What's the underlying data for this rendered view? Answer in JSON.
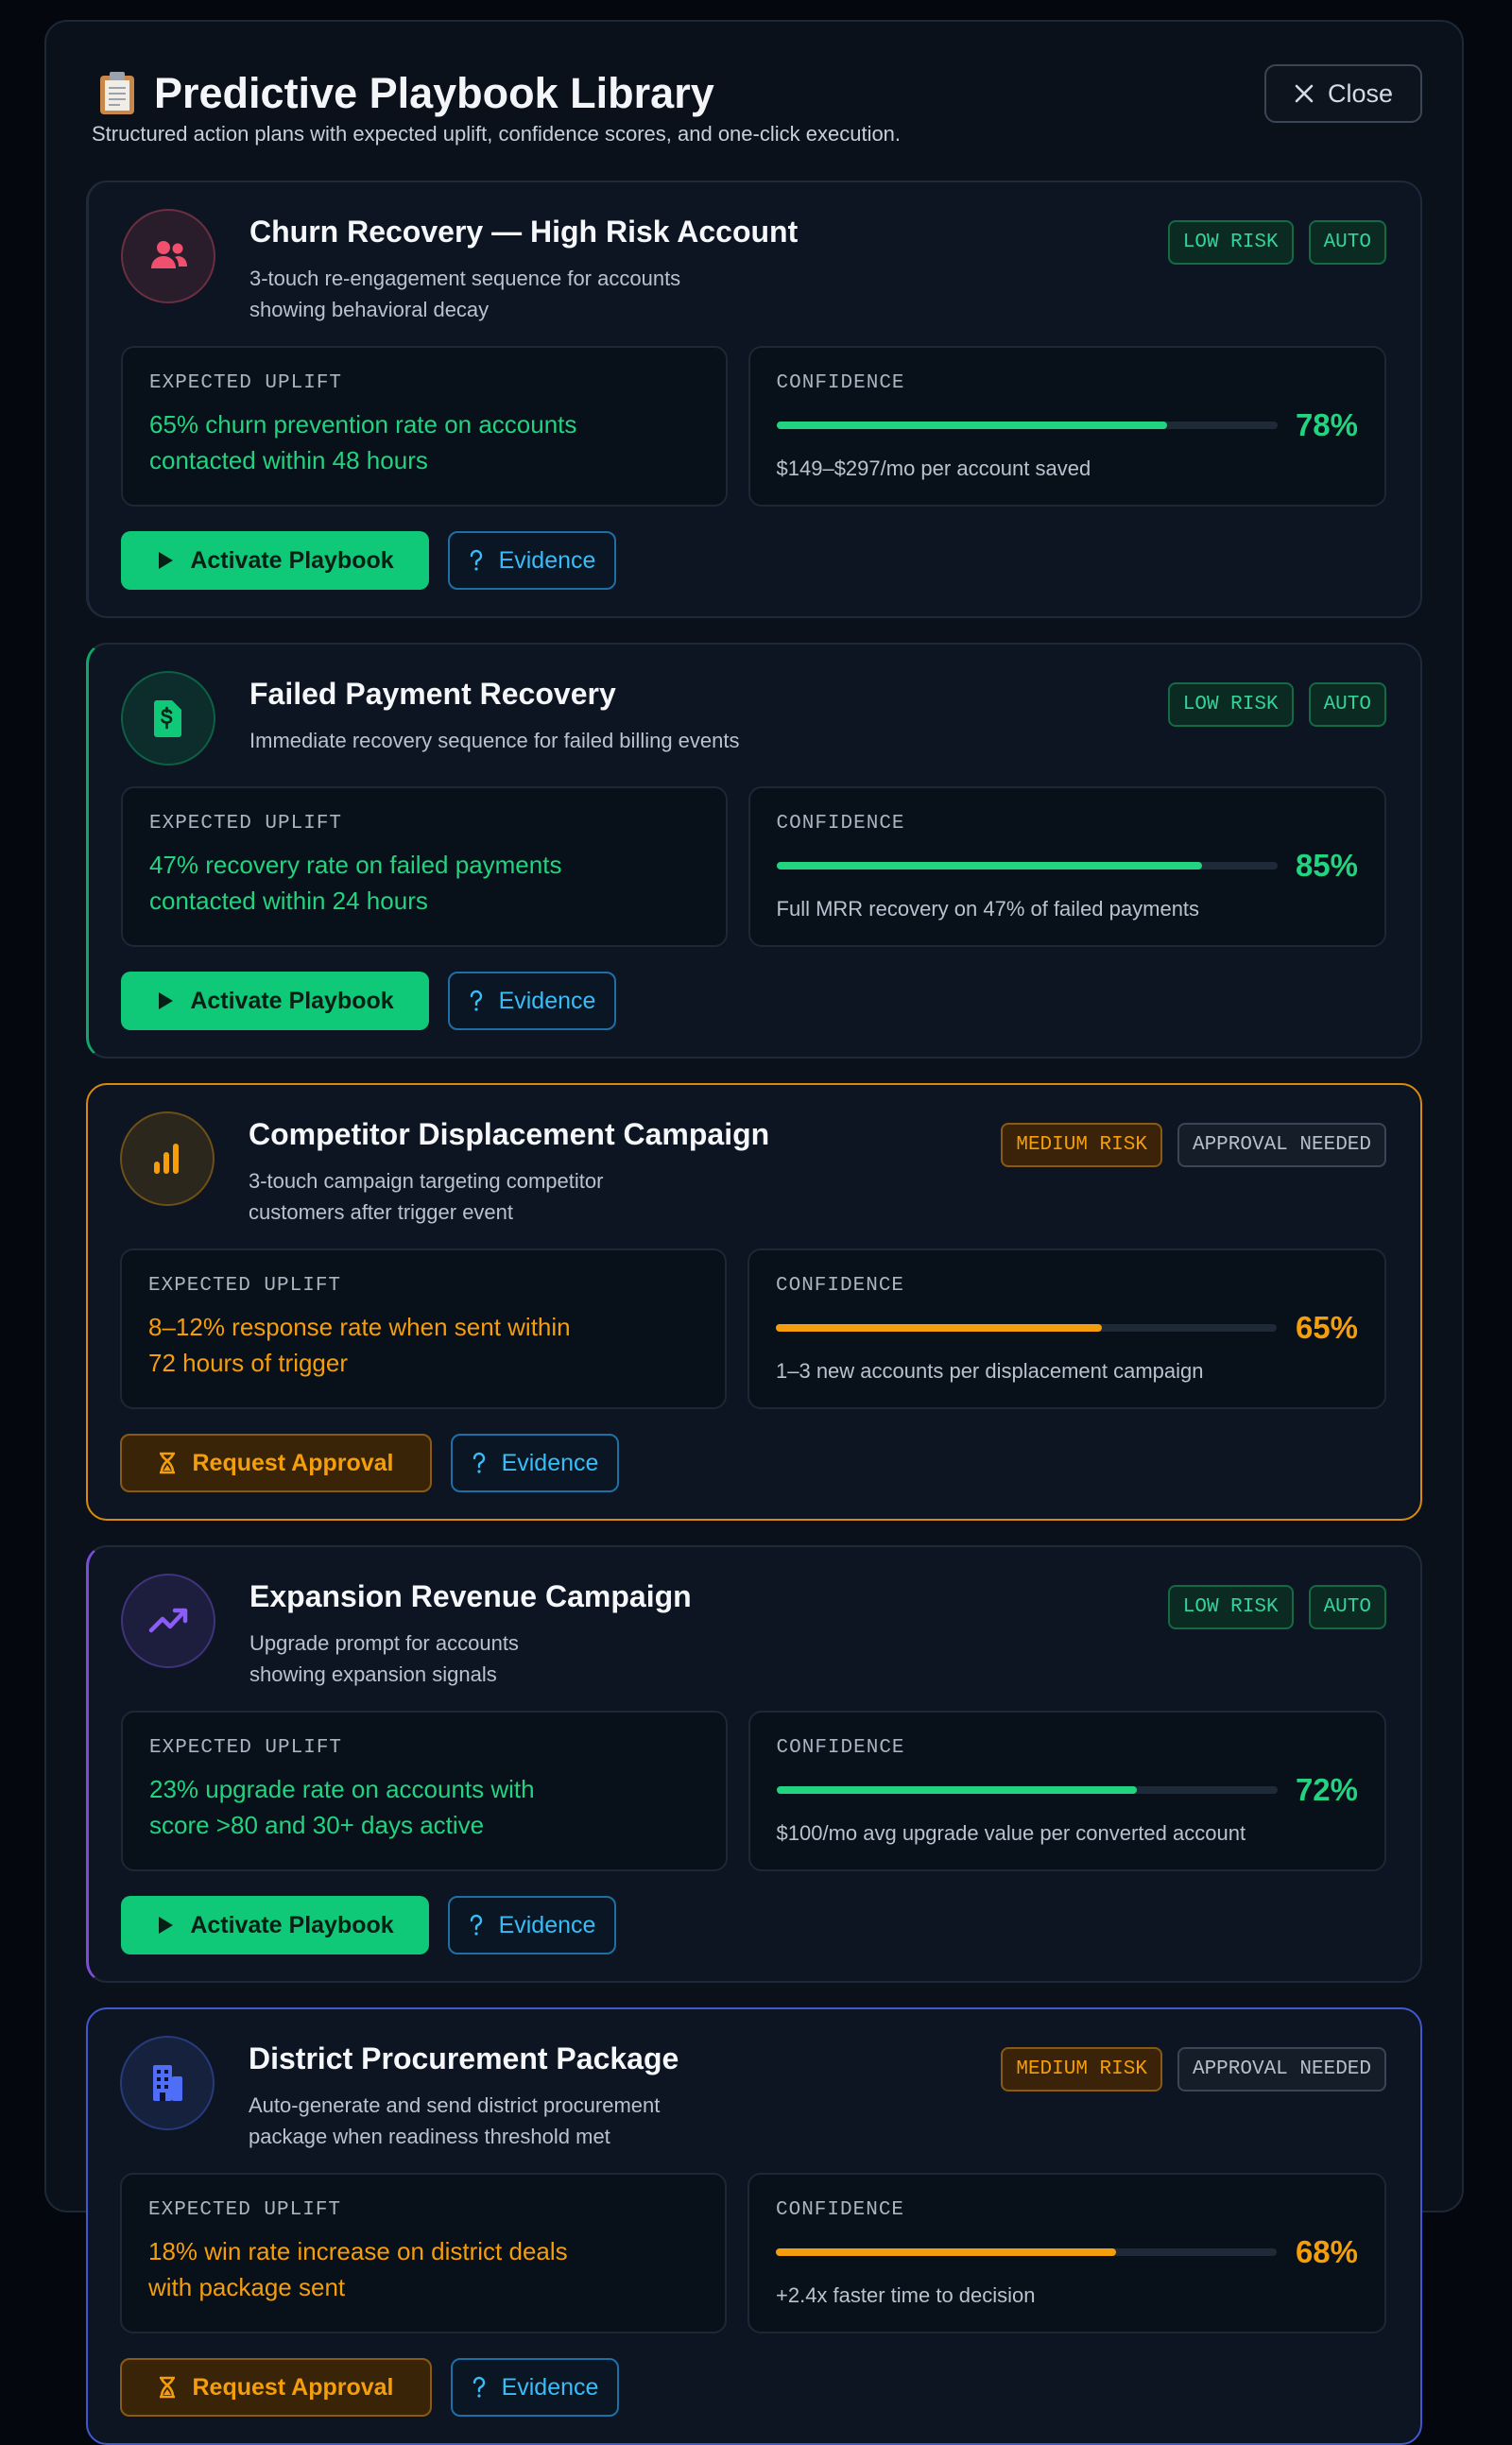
{
  "header": {
    "title": "Predictive Playbook Library",
    "subtitle": "Structured action plans with expected uplift, confidence scores, and one-click execution.",
    "close": "Close"
  },
  "playbooks": [
    {
      "title": "Churn Recovery — High Risk Account",
      "description": "3-touch re-engagement sequence for accounts\nshowing behavioral decay",
      "risk": "LOW RISK",
      "mode": "AUTO",
      "uplift_label": "EXPECTED UPLIFT",
      "uplift": "65% churn prevention rate on accounts\ncontacted within 48 hours",
      "confidence_label": "CONFIDENCE",
      "confidence": {
        "value": 78,
        "label": "78%"
      },
      "note": "$149–$297/mo per account saved",
      "action": "Activate Playbook",
      "evidence": "Evidence",
      "level": "low",
      "icon": "people",
      "icon_color": "#f0506e",
      "accent": "#1e2a3a"
    },
    {
      "title": "Failed Payment Recovery",
      "description": "Immediate recovery sequence for failed billing events",
      "risk": "LOW RISK",
      "mode": "AUTO",
      "uplift_label": "EXPECTED UPLIFT",
      "uplift": "47% recovery rate on failed payments\ncontacted within 24 hours",
      "confidence_label": "CONFIDENCE",
      "confidence": {
        "value": 85,
        "label": "85%"
      },
      "note": "Full MRR recovery on 47% of failed payments",
      "action": "Activate Playbook",
      "evidence": "Evidence",
      "level": "low",
      "icon": "invoice",
      "icon_color": "#10c978",
      "accent": "#10a866"
    },
    {
      "title": "Competitor Displacement Campaign",
      "description": "3-touch campaign targeting competitor\ncustomers after trigger event",
      "risk": "MEDIUM RISK",
      "mode": "APPROVAL NEEDED",
      "uplift_label": "EXPECTED UPLIFT",
      "uplift": "8–12% response rate when sent within\n72 hours of trigger",
      "confidence_label": "CONFIDENCE",
      "confidence": {
        "value": 65,
        "label": "65%"
      },
      "note": "1–3 new accounts per displacement campaign",
      "action": "Request Approval",
      "evidence": "Evidence",
      "level": "medium",
      "icon": "bars",
      "icon_color": "#f59e0b",
      "accent": "#d98a0b"
    },
    {
      "title": "Expansion Revenue Campaign",
      "description": "Upgrade prompt for accounts\nshowing expansion signals",
      "risk": "LOW RISK",
      "mode": "AUTO",
      "uplift_label": "EXPECTED UPLIFT",
      "uplift": "23% upgrade rate on accounts with\nscore >80 and 30+ days active",
      "confidence_label": "CONFIDENCE",
      "confidence": {
        "value": 72,
        "label": "72%"
      },
      "note": "$100/mo avg upgrade value per converted account",
      "action": "Activate Playbook",
      "evidence": "Evidence",
      "level": "low",
      "icon": "trend",
      "icon_color": "#8b5cf6",
      "accent": "#7c4ddb"
    },
    {
      "title": "District Procurement Package",
      "description": "Auto-generate and send district procurement\npackage when readiness threshold met",
      "risk": "MEDIUM RISK",
      "mode": "APPROVAL NEEDED",
      "uplift_label": "EXPECTED UPLIFT",
      "uplift": "18% win rate increase on district deals\nwith package sent",
      "confidence_label": "CONFIDENCE",
      "confidence": {
        "value": 68,
        "label": "68%"
      },
      "note": "+2.4x faster time to decision",
      "action": "Request Approval",
      "evidence": "Evidence",
      "level": "medium",
      "icon": "building",
      "icon_color": "#4f6ef7",
      "accent": "#4058d0"
    }
  ]
}
